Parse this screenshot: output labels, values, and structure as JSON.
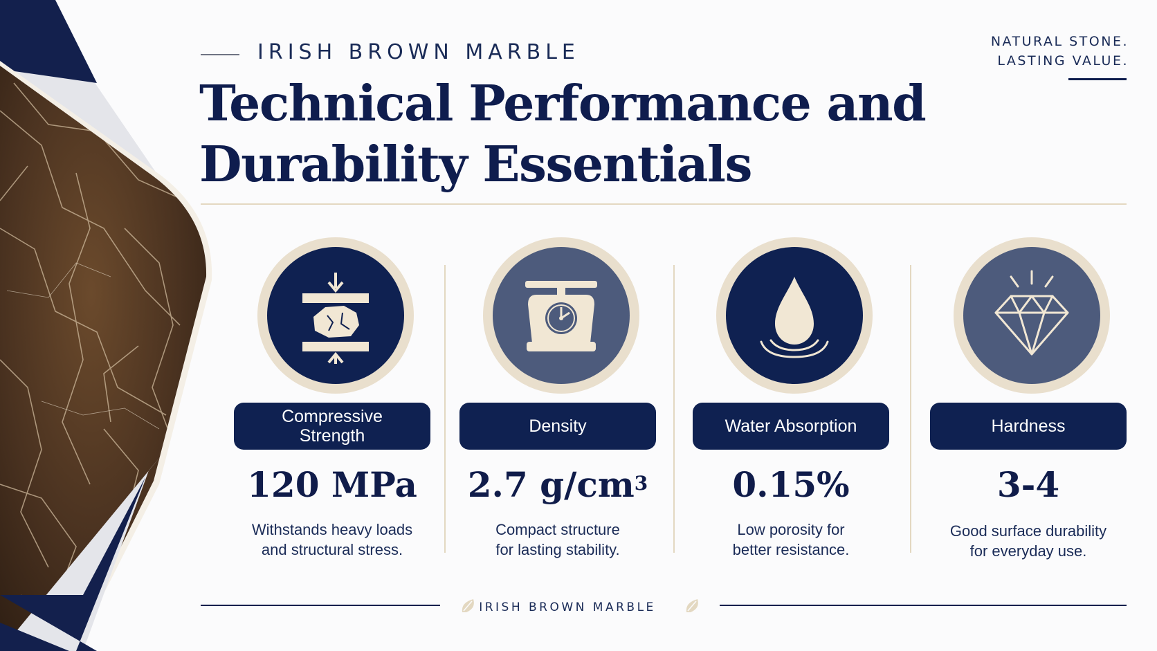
{
  "header": {
    "eyebrow": "IRISH BROWN MARBLE",
    "title_line1": "Technical Performance and",
    "title_line2": "Durability Essentials",
    "tagline_line1": "NATURAL STONE.",
    "tagline_line2": "LASTING VALUE."
  },
  "colors": {
    "navy": "#0f2151",
    "slate": "#4d5b7c",
    "cream": "#f1e7d4",
    "gold": "#e3d8c1"
  },
  "metrics": [
    {
      "label": "Compressive Strength",
      "value": "120 MPa",
      "value_sup": "",
      "desc_line1": "Withstands heavy loads",
      "desc_line2": "and structural stress.",
      "icon": "compression-rock-icon"
    },
    {
      "label": "Density",
      "value": "2.7 g/cm",
      "value_sup": "3",
      "desc_line1": "Compact structure",
      "desc_line2": "for lasting stability.",
      "icon": "weighing-scale-icon"
    },
    {
      "label": "Water Absorption",
      "value": "0.15%",
      "value_sup": "",
      "desc_line1": "Low porosity for",
      "desc_line2": "better resistance.",
      "icon": "water-drop-icon"
    },
    {
      "label": "Hardness",
      "value": "3-4",
      "value_sup": "",
      "desc_line1": "Good surface durability",
      "desc_line2": "for everyday use.",
      "icon": "diamond-icon"
    }
  ],
  "footer": {
    "text": "IRISH BROWN MARBLE"
  }
}
